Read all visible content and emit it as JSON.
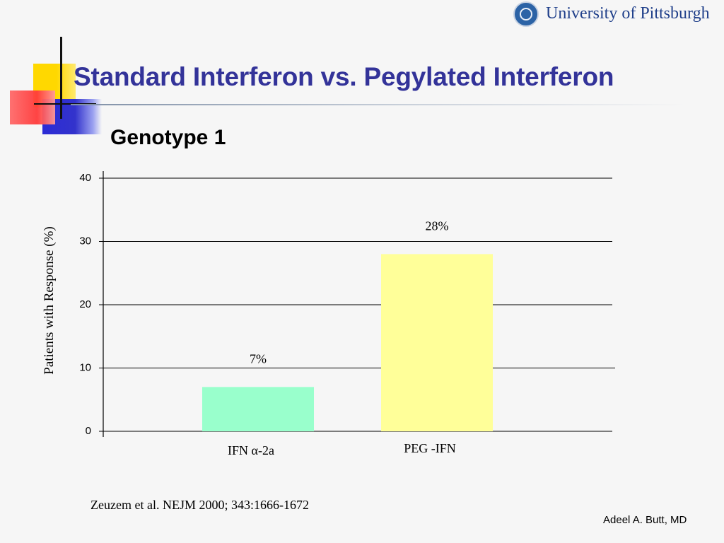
{
  "header": {
    "logo_text": "University of Pittsburgh",
    "title": "Standard Interferon vs. Pegylated Interferon",
    "subtitle": "Genotype 1"
  },
  "chart_data": {
    "type": "bar",
    "categories": [
      "IFN α-2a",
      "PEG -IFN"
    ],
    "values": [
      7,
      28
    ],
    "data_labels": [
      "7%",
      "28%"
    ],
    "bar_colors": [
      "#99ffcc",
      "#ffff99"
    ],
    "ylabel": "Patients with Response (%)",
    "xlabel": "",
    "ylim": [
      0,
      40
    ],
    "yticks": [
      0,
      10,
      20,
      30,
      40
    ],
    "grid": true
  },
  "footer": {
    "citation": "Zeuzem et al. NEJM 2000; 343:1666-1672",
    "author": "Adeel A. Butt, MD"
  },
  "colors": {
    "title": "#333399",
    "background": "#f6f6f6"
  }
}
